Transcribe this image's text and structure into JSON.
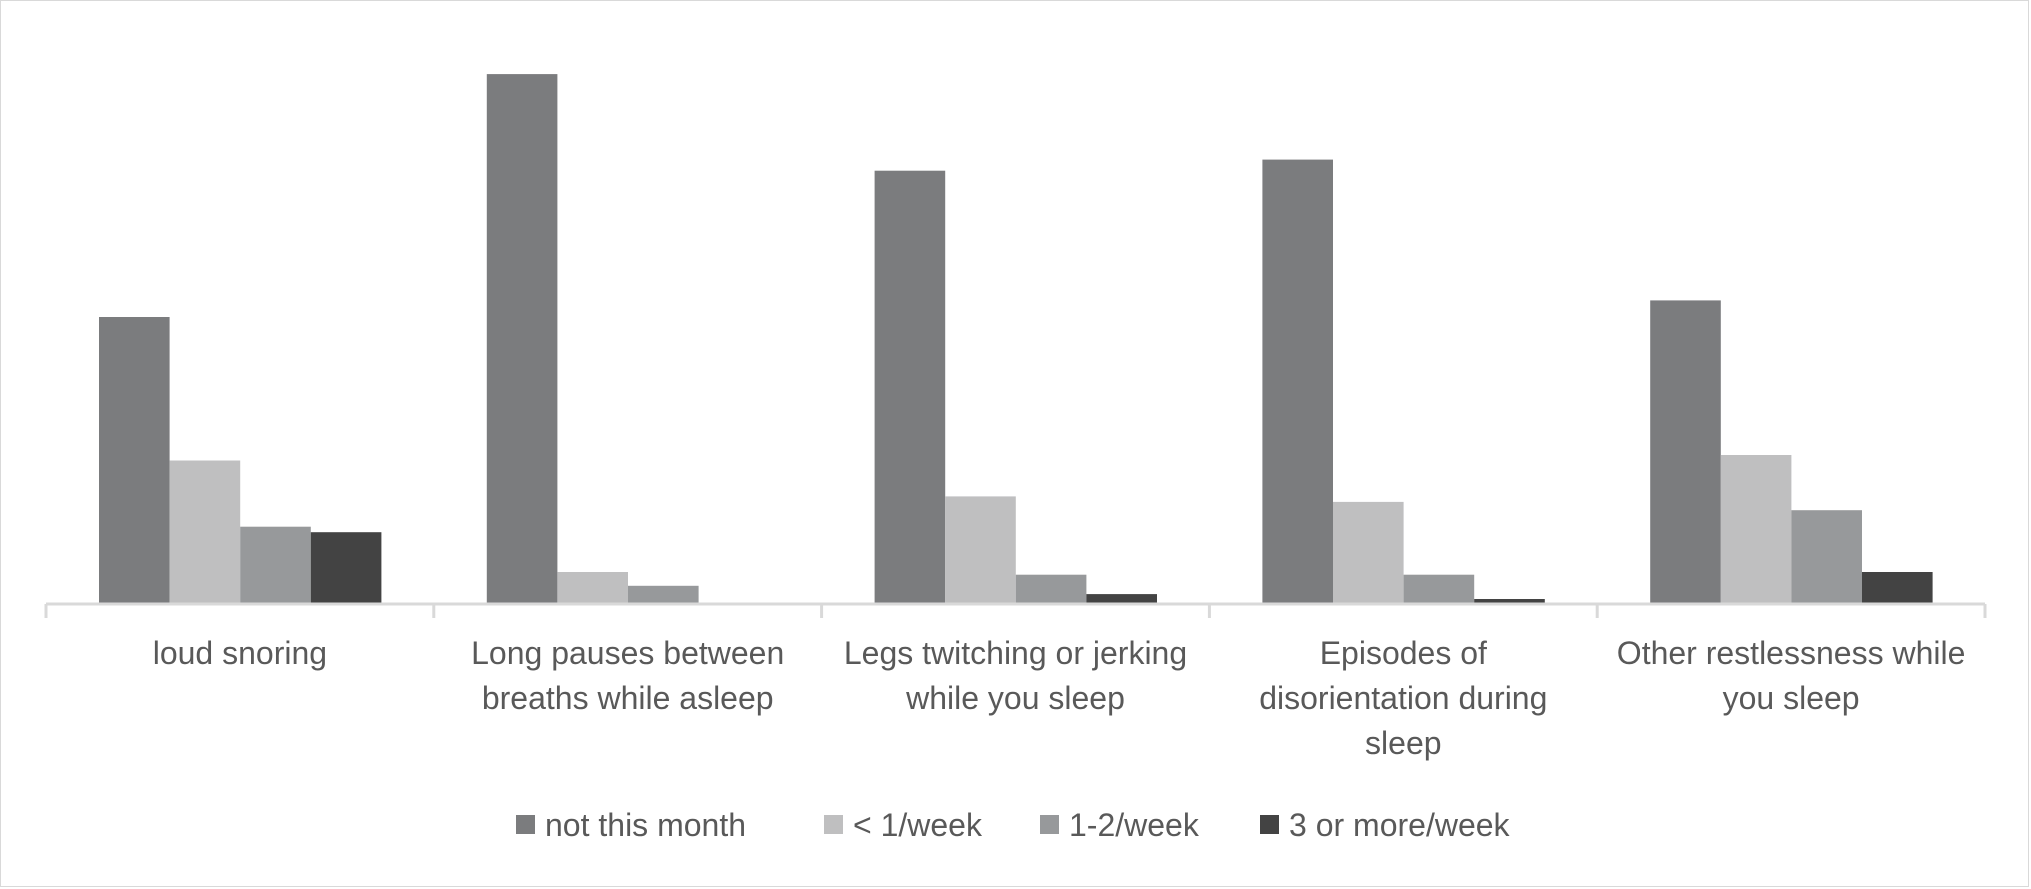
{
  "chart_data": {
    "type": "bar",
    "categories": [
      [
        "loud snoring"
      ],
      [
        "Long pauses between",
        "breaths while asleep"
      ],
      [
        "Legs twitching or jerking",
        "while you sleep"
      ],
      [
        "Episodes of",
        "disorientation during",
        "sleep"
      ],
      [
        "Other restlessness while",
        "you sleep"
      ]
    ],
    "series": [
      {
        "name": "not  this month",
        "color": "#7b7c7e",
        "values": [
          52,
          96,
          78.5,
          80.5,
          55
        ]
      },
      {
        "name": "< 1/week",
        "color": "#bfbfc0",
        "values": [
          26,
          5.8,
          19.5,
          18.5,
          27
        ]
      },
      {
        "name": "1-2/week",
        "color": "#97999b",
        "values": [
          14,
          3.3,
          5.3,
          5.3,
          17
        ]
      },
      {
        "name": "3 or more/week",
        "color": "#434343",
        "values": [
          13,
          0,
          1.8,
          0.9,
          5.8
        ]
      }
    ],
    "ylim": [
      0,
      100
    ],
    "grid": false,
    "legend_position": "bottom"
  }
}
